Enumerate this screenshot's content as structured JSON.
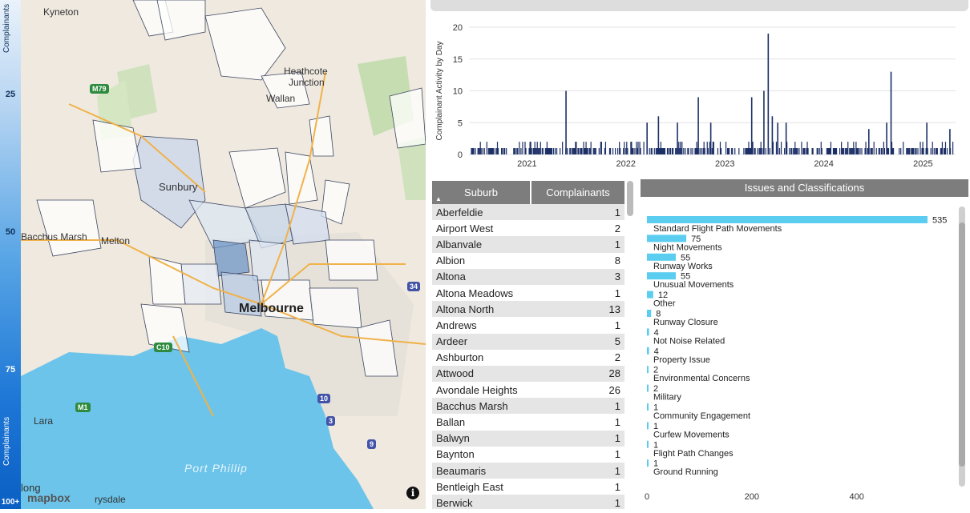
{
  "legend": {
    "title_top": "Complainants",
    "title_bottom": "Complainants",
    "ticks": [
      "25",
      "50",
      "75",
      "100+"
    ]
  },
  "map": {
    "labels": {
      "kyneton": "Kyneton",
      "heathcote": "Heathcote",
      "junction": "Junction",
      "wallan": "Wallan",
      "sunbury": "Sunbury",
      "bacchus_marsh": "Bacchus Marsh",
      "melton": "Melton",
      "melbourne": "Melbourne",
      "lara": "Lara",
      "port_phillip": "Port Phillip",
      "geelong": "long",
      "drysdale": "rysdale"
    },
    "shields": [
      "M79",
      "C10",
      "M1",
      "34",
      "10",
      "3",
      "9"
    ],
    "attribution": "mapbox",
    "info_icon": "i"
  },
  "timeline": {
    "ylabel": "Complainant Activity by Day"
  },
  "chart_data": [
    {
      "type": "bar",
      "title": "",
      "ylabel": "Complainant Activity by Day",
      "ylim": [
        0,
        20
      ],
      "yticks": [
        0,
        5,
        10,
        15,
        20
      ],
      "xticks": [
        "2021",
        "2022",
        "2023",
        "2024",
        "2025"
      ],
      "x_start": "2020-06-01",
      "x_end": "2025-05-01",
      "bar_color": "#1c2f66",
      "spikes": [
        {
          "date": "2021-05-25",
          "value": 10
        },
        {
          "date": "2022-03-20",
          "value": 5
        },
        {
          "date": "2022-05-01",
          "value": 6
        },
        {
          "date": "2022-07-10",
          "value": 5
        },
        {
          "date": "2022-09-25",
          "value": 9
        },
        {
          "date": "2022-11-10",
          "value": 5
        },
        {
          "date": "2023-04-10",
          "value": 9
        },
        {
          "date": "2023-05-25",
          "value": 10
        },
        {
          "date": "2023-06-10",
          "value": 19
        },
        {
          "date": "2023-06-25",
          "value": 6
        },
        {
          "date": "2023-07-15",
          "value": 5
        },
        {
          "date": "2023-08-15",
          "value": 5
        },
        {
          "date": "2024-06-15",
          "value": 4
        },
        {
          "date": "2024-08-20",
          "value": 5
        },
        {
          "date": "2024-09-05",
          "value": 13
        },
        {
          "date": "2025-01-15",
          "value": 5
        },
        {
          "date": "2025-04-10",
          "value": 4
        }
      ],
      "baseline": [
        1,
        2
      ]
    },
    {
      "type": "bar",
      "orientation": "horizontal",
      "title": "Issues and Classifications",
      "categories": [
        "Standard Flight Path Movements",
        "Night Movements",
        "Runway Works",
        "Unusual Movements",
        "Other",
        "Runway Closure",
        "Not Noise Related",
        "Property Issue",
        "Environmental Concerns",
        "Military",
        "Community Engagement",
        "Curfew Movements",
        "Flight Path Changes",
        "Ground Running"
      ],
      "values": [
        535,
        75,
        55,
        55,
        12,
        8,
        4,
        4,
        2,
        2,
        1,
        1,
        1,
        1
      ],
      "xticks": [
        0,
        200,
        400
      ],
      "xlim": [
        0,
        600
      ],
      "bar_color": "#5bcdf0"
    }
  ],
  "table": {
    "headers": [
      "Suburb",
      "Complainants"
    ],
    "sort_icon": "sort-ascending-icon",
    "rows": [
      [
        "Aberfeldie",
        "1"
      ],
      [
        "Airport West",
        "2"
      ],
      [
        "Albanvale",
        "1"
      ],
      [
        "Albion",
        "8"
      ],
      [
        "Altona",
        "3"
      ],
      [
        "Altona Meadows",
        "1"
      ],
      [
        "Altona North",
        "13"
      ],
      [
        "Andrews",
        "1"
      ],
      [
        "Ardeer",
        "5"
      ],
      [
        "Ashburton",
        "2"
      ],
      [
        "Attwood",
        "28"
      ],
      [
        "Avondale Heights",
        "26"
      ],
      [
        "Bacchus Marsh",
        "1"
      ],
      [
        "Ballan",
        "1"
      ],
      [
        "Balwyn",
        "1"
      ],
      [
        "Baynton",
        "1"
      ],
      [
        "Beaumaris",
        "1"
      ],
      [
        "Bentleigh East",
        "1"
      ],
      [
        "Berwick",
        "1"
      ]
    ]
  },
  "issues": {
    "header": "Issues and Classifications"
  }
}
